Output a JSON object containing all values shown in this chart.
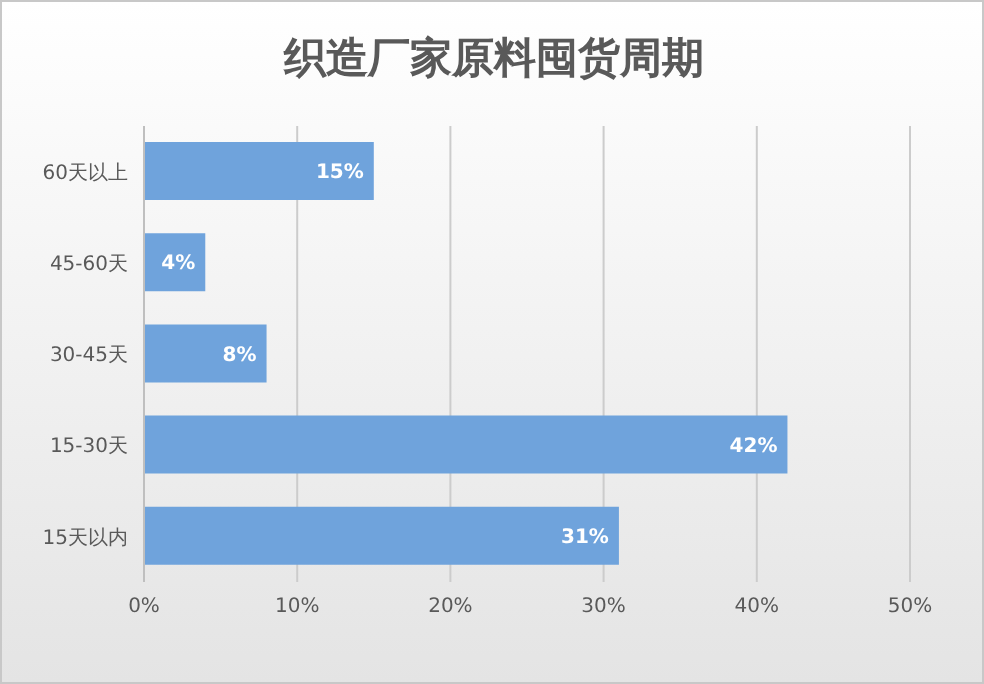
{
  "chart_data": {
    "type": "bar",
    "orientation": "horizontal",
    "title": "织造厂家原料囤货周期",
    "categories": [
      "60天以上",
      "45-60天",
      "30-45天",
      "15-30天",
      "15天以内"
    ],
    "values": [
      15,
      4,
      8,
      42,
      31
    ],
    "value_labels": [
      "15%",
      "4%",
      "8%",
      "42%",
      "31%"
    ],
    "color": "#6fa3dc",
    "xlim": [
      0,
      50
    ],
    "xticks": [
      {
        "value": 0,
        "label": "0%"
      },
      {
        "value": 10,
        "label": "10%"
      },
      {
        "value": 20,
        "label": "20%"
      },
      {
        "value": 30,
        "label": "30%"
      },
      {
        "value": 40,
        "label": "40%"
      },
      {
        "value": 50,
        "label": "50%"
      }
    ],
    "grid": "x"
  }
}
